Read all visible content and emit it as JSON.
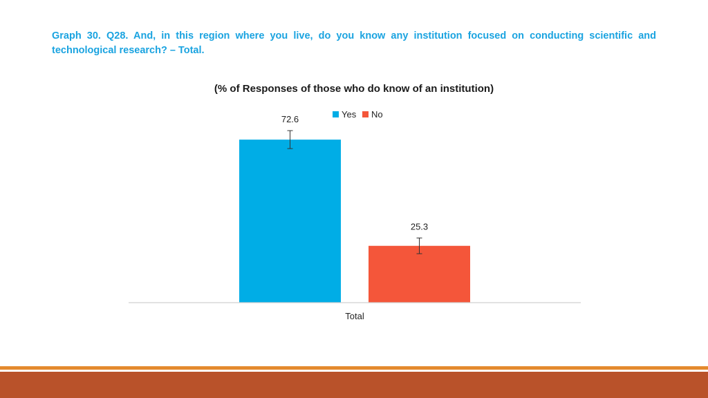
{
  "slide": {
    "heading": "Graph 30. Q28. And, in this region where you live, do you know any institution focused on conducting scientific and technological research? – Total."
  },
  "colors": {
    "heading": "#1aa3e0",
    "yes": "#00ade6",
    "no": "#f4563a",
    "footer_stripe": "#e48a2e",
    "footer_bar": "#b9522a"
  },
  "chart_data": {
    "type": "bar",
    "title": "(% of Responses of those who do know of an institution)",
    "categories": [
      "Total"
    ],
    "series": [
      {
        "name": "Yes",
        "values": [
          72.6
        ],
        "error": [
          4
        ]
      },
      {
        "name": "No",
        "values": [
          25.3
        ],
        "error": [
          3.5
        ]
      }
    ],
    "data_labels": [
      "72.6",
      "25.3"
    ],
    "ylim": [
      0,
      80
    ],
    "grid": false,
    "legend": "top"
  }
}
